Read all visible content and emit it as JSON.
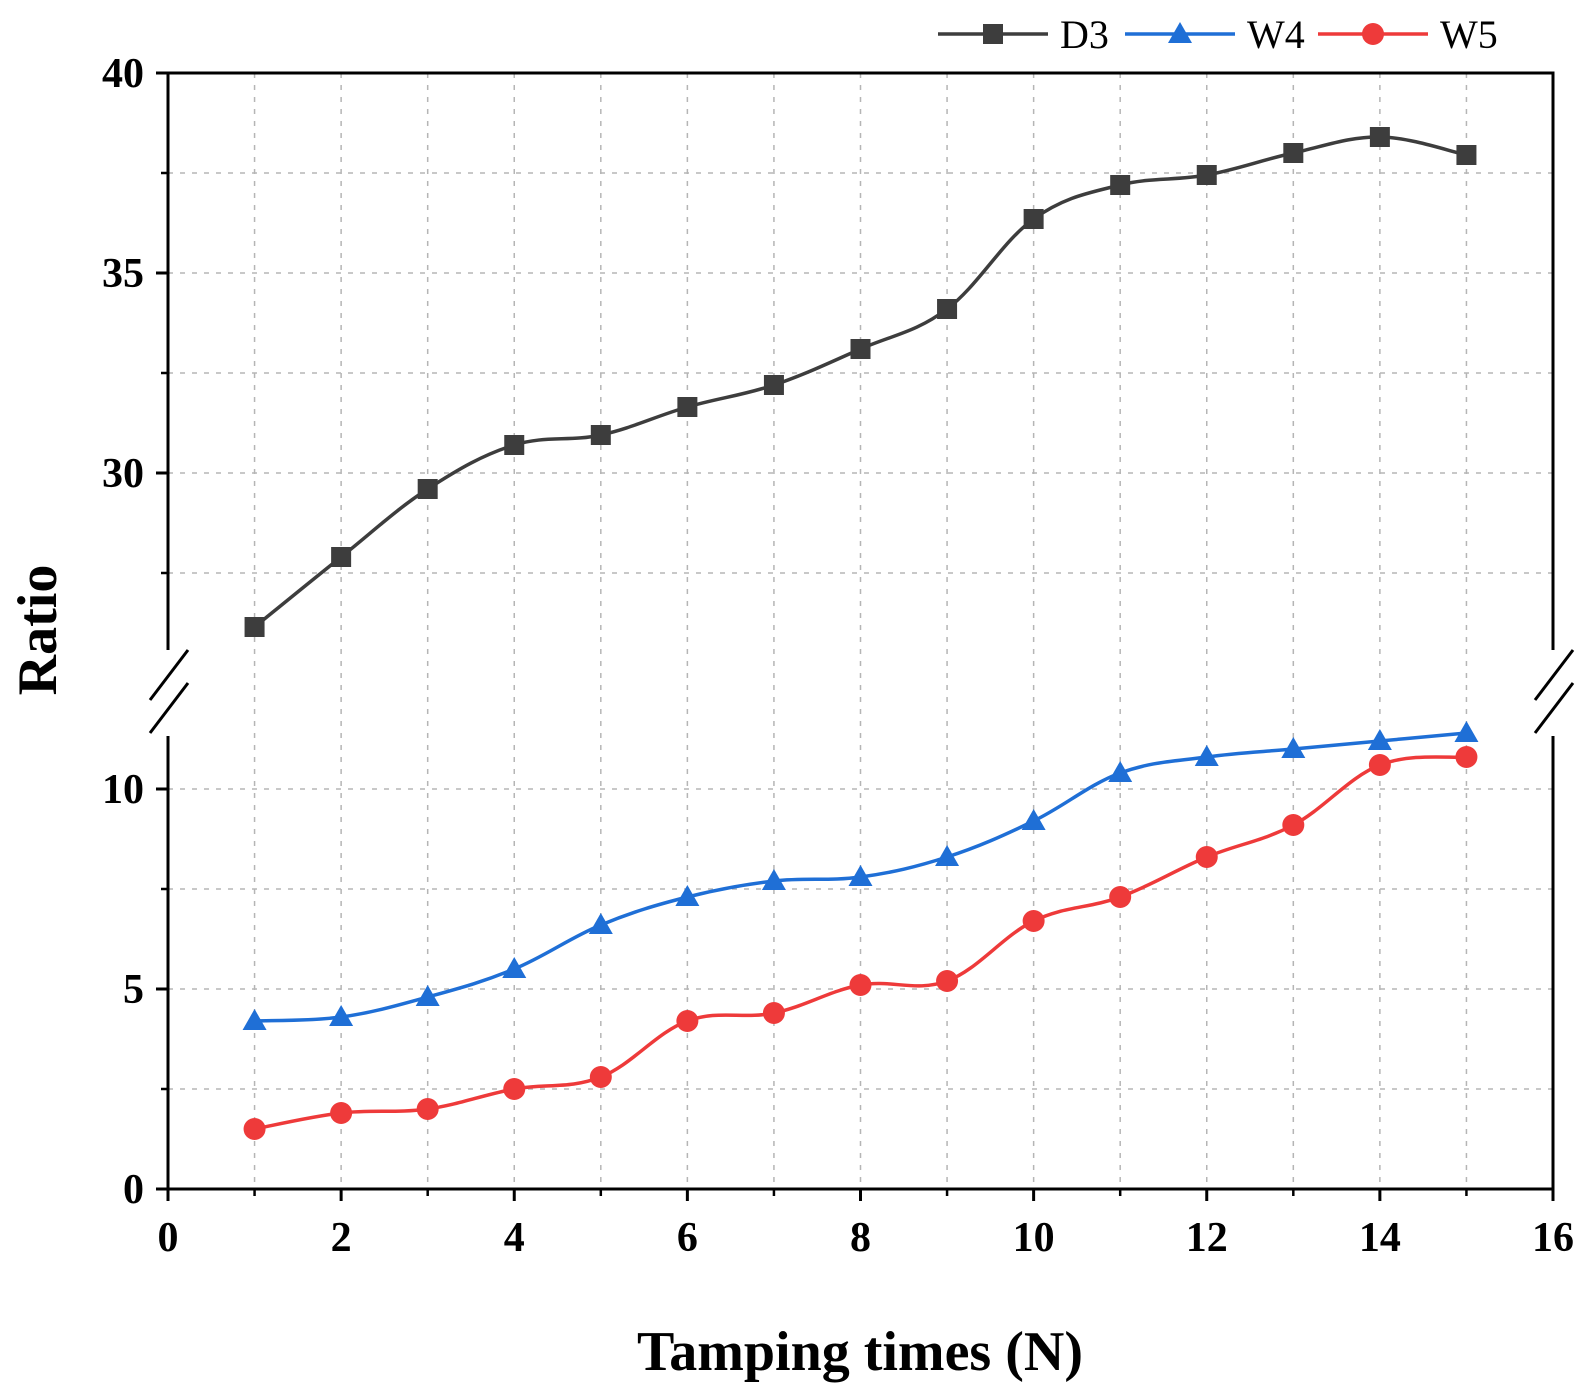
{
  "chart_data": {
    "type": "line",
    "title": "",
    "xlabel": "Tamping times (N)",
    "ylabel": "Ratio",
    "xlim": [
      0,
      16
    ],
    "x_ticks": [
      "0",
      "2",
      "4",
      "6",
      "8",
      "10",
      "12",
      "14",
      "16"
    ],
    "y_break": {
      "lower": [
        0,
        12
      ],
      "upper": [
        26,
        40
      ]
    },
    "y_ticks": [
      "0",
      "5",
      "10",
      "30",
      "35",
      "40"
    ],
    "grid": true,
    "legend_position": "top-right",
    "x": [
      1,
      2,
      3,
      4,
      5,
      6,
      7,
      8,
      9,
      10,
      11,
      12,
      13,
      14,
      15
    ],
    "series": [
      {
        "name": "D3",
        "marker": "square",
        "color": "#3d3d3d",
        "values": [
          26.15,
          27.9,
          29.6,
          30.7,
          30.95,
          31.65,
          32.2,
          33.1,
          34.1,
          36.35,
          37.2,
          37.45,
          38.0,
          38.4,
          37.95
        ]
      },
      {
        "name": "W4",
        "marker": "triangle",
        "color": "#1f6fd6",
        "values": [
          4.2,
          4.3,
          4.8,
          5.5,
          6.6,
          7.3,
          7.7,
          7.8,
          8.3,
          9.2,
          10.4,
          10.8,
          11.0,
          11.2,
          11.4
        ]
      },
      {
        "name": "W5",
        "marker": "circle",
        "color": "#ee3a3a",
        "values": [
          1.5,
          1.9,
          2.0,
          2.5,
          2.8,
          4.2,
          4.4,
          5.1,
          5.2,
          6.7,
          7.3,
          8.3,
          9.1,
          10.6,
          10.8
        ]
      }
    ]
  }
}
